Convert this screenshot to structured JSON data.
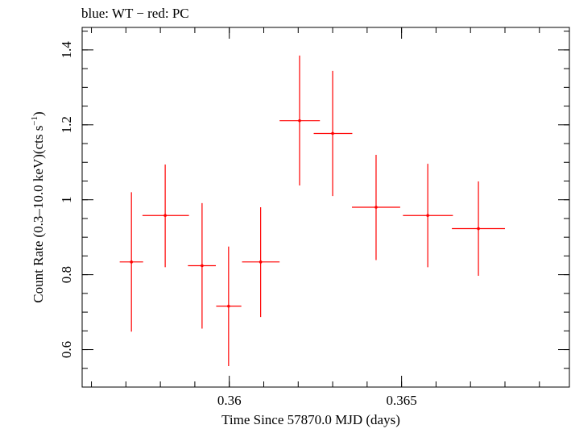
{
  "chart_data": {
    "type": "scatter",
    "title": "blue: WT − red: PC",
    "xlabel": "Time Since 57870.0 MJD (days)",
    "ylabel_main": "Count Rate (0.3–10.0 keV)(cts s",
    "ylabel_sup": "−1",
    "ylabel_close": ")",
    "xlim": [
      0.35573,
      0.36987
    ],
    "ylim": [
      0.5,
      1.46
    ],
    "x_ticks": [
      {
        "value": 0.36,
        "label": "0.36"
      },
      {
        "value": 0.365,
        "label": "0.365"
      }
    ],
    "x_minor_step": 0.001,
    "y_ticks": [
      {
        "value": 0.6,
        "label": "0.6"
      },
      {
        "value": 0.8,
        "label": "0.8"
      },
      {
        "value": 1.0,
        "label": "1"
      },
      {
        "value": 1.2,
        "label": "1.2"
      },
      {
        "value": 1.4,
        "label": "1.4"
      }
    ],
    "y_minor_step": 0.05,
    "grid": false,
    "series": [
      {
        "color": "#ff0000",
        "points": [
          {
            "x": 0.35716,
            "xerr_lo": 0.00034,
            "xerr_hi": 0.00034,
            "y": 0.834,
            "yerr_lo": 0.186,
            "yerr_hi": 0.186
          },
          {
            "x": 0.35814,
            "xerr_lo": 0.00066,
            "xerr_hi": 0.00069,
            "y": 0.958,
            "yerr_lo": 0.138,
            "yerr_hi": 0.136
          },
          {
            "x": 0.35921,
            "xerr_lo": 0.00041,
            "xerr_hi": 0.0004,
            "y": 0.824,
            "yerr_lo": 0.168,
            "yerr_hi": 0.167
          },
          {
            "x": 0.35998,
            "xerr_lo": 0.00036,
            "xerr_hi": 0.00037,
            "y": 0.716,
            "yerr_lo": 0.16,
            "yerr_hi": 0.159
          },
          {
            "x": 0.36091,
            "xerr_lo": 0.00054,
            "xerr_hi": 0.00055,
            "y": 0.834,
            "yerr_lo": 0.147,
            "yerr_hi": 0.146
          },
          {
            "x": 0.36204,
            "xerr_lo": 0.00058,
            "xerr_hi": 0.00059,
            "y": 1.211,
            "yerr_lo": 0.173,
            "yerr_hi": 0.174
          },
          {
            "x": 0.363,
            "xerr_lo": 0.00055,
            "xerr_hi": 0.00057,
            "y": 1.177,
            "yerr_lo": 0.167,
            "yerr_hi": 0.167
          },
          {
            "x": 0.36426,
            "xerr_lo": 0.0007,
            "xerr_hi": 0.0007,
            "y": 0.98,
            "yerr_lo": 0.141,
            "yerr_hi": 0.14
          },
          {
            "x": 0.36576,
            "xerr_lo": 0.00072,
            "xerr_hi": 0.00073,
            "y": 0.958,
            "yerr_lo": 0.138,
            "yerr_hi": 0.138
          },
          {
            "x": 0.36723,
            "xerr_lo": 0.00077,
            "xerr_hi": 0.00077,
            "y": 0.923,
            "yerr_lo": 0.126,
            "yerr_hi": 0.126
          }
        ]
      }
    ]
  }
}
